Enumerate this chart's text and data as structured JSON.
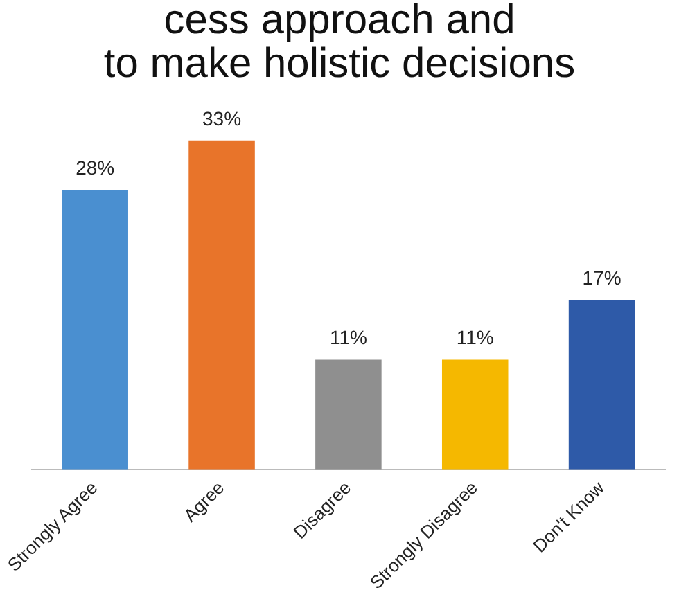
{
  "chart_data": {
    "type": "bar",
    "title": "cess approach and\nto make holistic decisions",
    "categories": [
      "Strongly Agree",
      "Agree",
      "Disagree",
      "Strongly Disagree",
      "Don't Know"
    ],
    "values": [
      28,
      33,
      11,
      11,
      17
    ],
    "colors": [
      "#4a8fd0",
      "#e8742a",
      "#8f8f8f",
      "#f5b800",
      "#2e5aa8"
    ],
    "value_labels": [
      "28%",
      "33%",
      "11%",
      "11%",
      "17%"
    ],
    "legend": false,
    "grid": false,
    "relative": false
  }
}
